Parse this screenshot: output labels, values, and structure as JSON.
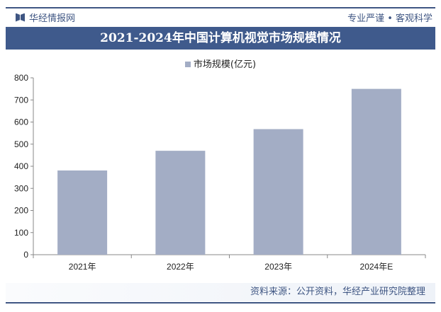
{
  "header": {
    "brand": "华经情报网",
    "slogan": "专业严谨 • 客观科学",
    "title": "2021-2024年中国计算机视觉市场规模情况"
  },
  "footer": {
    "source": "资料来源：公开资料，华经产业研究院整理"
  },
  "colors": {
    "bar": "#a3adc5",
    "title_band": "#3f5a8c"
  },
  "chart_data": {
    "type": "bar",
    "title": "2021-2024年中国计算机视觉市场规模情况",
    "categories": [
      "2021年",
      "2022年",
      "2023年",
      "2024年E"
    ],
    "series": [
      {
        "name": "市场规模(亿元)",
        "values": [
          381,
          470,
          568,
          750
        ]
      }
    ],
    "ylim": [
      0,
      800
    ],
    "yticks": [
      "0",
      "100",
      "200",
      "300",
      "400",
      "500",
      "600",
      "700",
      "800"
    ],
    "grid": false,
    "legend": "top-center"
  }
}
